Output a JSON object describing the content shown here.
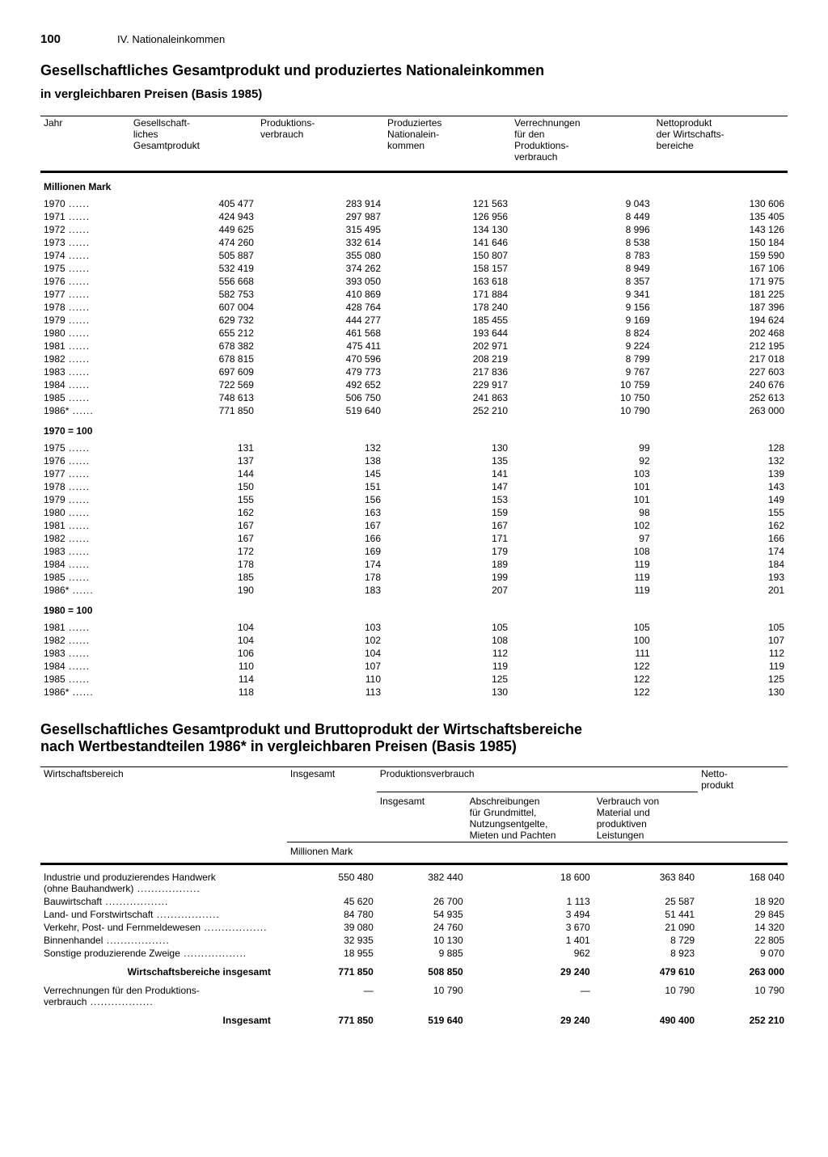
{
  "page_number": "100",
  "section_label": "IV. Nationaleinkommen",
  "title1": "Gesellschaftliches Gesamtprodukt und produziertes Nationaleinkommen",
  "subtitle1": "in vergleichbaren Preisen (Basis 1985)",
  "t1": {
    "columns": [
      "Jahr",
      "Gesellschaft-\nliches\nGesamtprodukt",
      "Produktions-\nverbrauch",
      "Produziertes\nNationalein-\nkommen",
      "Verrechnungen\nfür den\nProduktions-\nverbrauch",
      "Nettoprodukt\nder Wirtschafts-\nbereiche"
    ],
    "unit_label": "Millionen Mark",
    "sections": [
      {
        "header": "Millionen Mark",
        "rows": [
          [
            "1970",
            "405 477",
            "283 914",
            "121 563",
            "9 043",
            "130 606"
          ],
          [
            "1971",
            "424 943",
            "297 987",
            "126 956",
            "8 449",
            "135 405"
          ],
          [
            "1972",
            "449 625",
            "315 495",
            "134 130",
            "8 996",
            "143 126"
          ],
          [
            "1973",
            "474 260",
            "332 614",
            "141 646",
            "8 538",
            "150 184"
          ],
          [
            "1974",
            "505 887",
            "355 080",
            "150 807",
            "8 783",
            "159 590"
          ],
          [
            "1975",
            "532 419",
            "374 262",
            "158 157",
            "8 949",
            "167 106"
          ],
          [
            "1976",
            "556 668",
            "393 050",
            "163 618",
            "8 357",
            "171 975"
          ],
          [
            "1977",
            "582 753",
            "410 869",
            "171 884",
            "9 341",
            "181 225"
          ],
          [
            "1978",
            "607 004",
            "428 764",
            "178 240",
            "9 156",
            "187 396"
          ],
          [
            "1979",
            "629 732",
            "444 277",
            "185 455",
            "9 169",
            "194 624"
          ],
          [
            "1980",
            "655 212",
            "461 568",
            "193 644",
            "8 824",
            "202 468"
          ],
          [
            "1981",
            "678 382",
            "475 411",
            "202 971",
            "9 224",
            "212 195"
          ],
          [
            "1982",
            "678 815",
            "470 596",
            "208 219",
            "8 799",
            "217 018"
          ],
          [
            "1983",
            "697 609",
            "479 773",
            "217 836",
            "9 767",
            "227 603"
          ],
          [
            "1984",
            "722 569",
            "492 652",
            "229 917",
            "10 759",
            "240 676"
          ],
          [
            "1985",
            "748 613",
            "506 750",
            "241 863",
            "10 750",
            "252 613"
          ],
          [
            "1986*",
            "771 850",
            "519 640",
            "252 210",
            "10 790",
            "263 000"
          ]
        ]
      },
      {
        "header": "1970 = 100",
        "rows": [
          [
            "1975",
            "131",
            "132",
            "130",
            "99",
            "128"
          ],
          [
            "1976",
            "137",
            "138",
            "135",
            "92",
            "132"
          ],
          [
            "1977",
            "144",
            "145",
            "141",
            "103",
            "139"
          ],
          [
            "1978",
            "150",
            "151",
            "147",
            "101",
            "143"
          ],
          [
            "1979",
            "155",
            "156",
            "153",
            "101",
            "149"
          ],
          [
            "1980",
            "162",
            "163",
            "159",
            "98",
            "155"
          ],
          [
            "1981",
            "167",
            "167",
            "167",
            "102",
            "162"
          ],
          [
            "1982",
            "167",
            "166",
            "171",
            "97",
            "166"
          ],
          [
            "1983",
            "172",
            "169",
            "179",
            "108",
            "174"
          ],
          [
            "1984",
            "178",
            "174",
            "189",
            "119",
            "184"
          ],
          [
            "1985",
            "185",
            "178",
            "199",
            "119",
            "193"
          ],
          [
            "1986*",
            "190",
            "183",
            "207",
            "119",
            "201"
          ]
        ]
      },
      {
        "header": "1980 = 100",
        "rows": [
          [
            "1981",
            "104",
            "103",
            "105",
            "105",
            "105"
          ],
          [
            "1982",
            "104",
            "102",
            "108",
            "100",
            "107"
          ],
          [
            "1983",
            "106",
            "104",
            "112",
            "111",
            "112"
          ],
          [
            "1984",
            "110",
            "107",
            "119",
            "122",
            "119"
          ],
          [
            "1985",
            "114",
            "110",
            "125",
            "122",
            "125"
          ],
          [
            "1986*",
            "118",
            "113",
            "130",
            "122",
            "130"
          ]
        ]
      }
    ]
  },
  "title2": "Gesellschaftliches Gesamtprodukt und Bruttoprodukt der Wirtschaftsbereiche\nnach Wertbestandteilen 1986* in vergleichbaren Preisen (Basis 1985)",
  "t2": {
    "col_main": [
      "Wirtschaftsbereich",
      "Insgesamt",
      "Produktionsverbrauch",
      "",
      "",
      "Netto-\nprodukt"
    ],
    "col_sub": [
      "",
      "",
      "Insgesamt",
      "Abschreibungen\nfür Grundmittel,\nNutzungsentgelte,\nMieten und Pachten",
      "Verbrauch von\nMaterial und\nproduktiven\nLeistungen",
      ""
    ],
    "unit_label": "Millionen Mark",
    "rows": [
      [
        "Industrie und produzierendes Handwerk\n(ohne Bauhandwerk)",
        "550 480",
        "382 440",
        "18 600",
        "363 840",
        "168 040"
      ],
      [
        "Bauwirtschaft",
        "45 620",
        "26 700",
        "1 113",
        "25 587",
        "18 920"
      ],
      [
        "Land- und Forstwirtschaft",
        "84 780",
        "54 935",
        "3 494",
        "51 441",
        "29 845"
      ],
      [
        "Verkehr, Post- und Fernmeldewesen",
        "39 080",
        "24 760",
        "3 670",
        "21 090",
        "14 320"
      ],
      [
        "Binnenhandel",
        "32 935",
        "10 130",
        "1 401",
        "8 729",
        "22 805"
      ],
      [
        "Sonstige produzierende Zweige",
        "18 955",
        "9 885",
        "962",
        "8 923",
        "9 070"
      ]
    ],
    "total1": [
      "Wirtschaftsbereiche insgesamt",
      "771 850",
      "508 850",
      "29 240",
      "479 610",
      "263 000"
    ],
    "verrech_label": "Verrechnungen für den Produktions-\nverbrauch",
    "verrech": [
      "—",
      "10 790",
      "—",
      "10 790",
      "10 790"
    ],
    "total2": [
      "Insgesamt",
      "771 850",
      "519 640",
      "29 240",
      "490 400",
      "252 210"
    ]
  }
}
